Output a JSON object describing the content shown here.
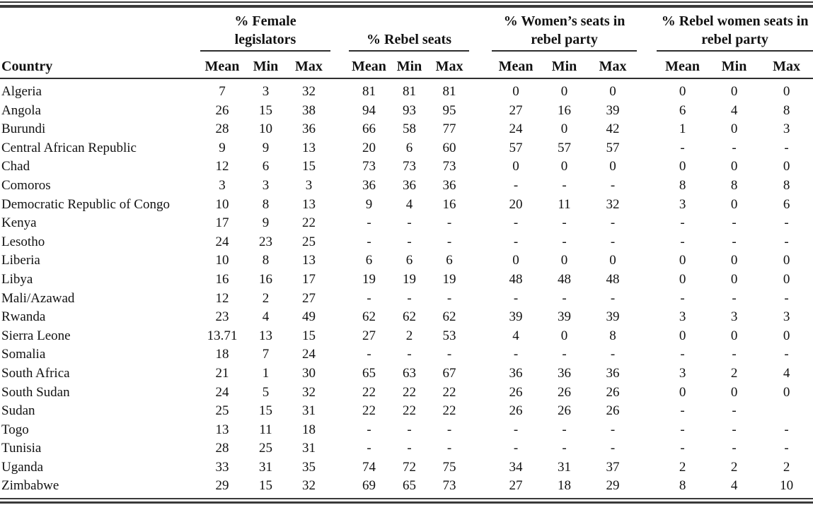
{
  "colors": {
    "background": "#ffffff",
    "text": "#121212",
    "rule_heavy": "#3a3a3a",
    "rule_light": "#2e2e2e"
  },
  "table": {
    "row_header": "Country",
    "groups": [
      {
        "label": "% Female\nlegislators",
        "sub": [
          "Mean",
          "Min",
          "Max"
        ]
      },
      {
        "label": "% Rebel seats",
        "sub": [
          "Mean",
          "Min",
          "Max"
        ]
      },
      {
        "label": "% Women’s seats in\nrebel party",
        "sub": [
          "Mean",
          "Min",
          "Max"
        ]
      },
      {
        "label": "% Rebel women seats in\nrebel party",
        "sub": [
          "Mean",
          "Min",
          "Max"
        ]
      }
    ],
    "rows": [
      {
        "country": "Algeria",
        "pct_female_legislators": [
          "7",
          "3",
          "32"
        ],
        "pct_rebel_seats": [
          "81",
          "81",
          "81"
        ],
        "pct_womens_seats_rebel_party": [
          "0",
          "0",
          "0"
        ],
        "pct_rebel_women_seats_rebel_party": [
          "0",
          "0",
          "0"
        ]
      },
      {
        "country": "Angola",
        "pct_female_legislators": [
          "26",
          "15",
          "38"
        ],
        "pct_rebel_seats": [
          "94",
          "93",
          "95"
        ],
        "pct_womens_seats_rebel_party": [
          "27",
          "16",
          "39"
        ],
        "pct_rebel_women_seats_rebel_party": [
          "6",
          "4",
          "8"
        ]
      },
      {
        "country": "Burundi",
        "pct_female_legislators": [
          "28",
          "10",
          "36"
        ],
        "pct_rebel_seats": [
          "66",
          "58",
          "77"
        ],
        "pct_womens_seats_rebel_party": [
          "24",
          "0",
          "42"
        ],
        "pct_rebel_women_seats_rebel_party": [
          "1",
          "0",
          "3"
        ]
      },
      {
        "country": "Central African Republic",
        "pct_female_legislators": [
          "9",
          "9",
          "13"
        ],
        "pct_rebel_seats": [
          "20",
          "6",
          "60"
        ],
        "pct_womens_seats_rebel_party": [
          "57",
          "57",
          "57"
        ],
        "pct_rebel_women_seats_rebel_party": [
          "-",
          "-",
          "-"
        ]
      },
      {
        "country": "Chad",
        "pct_female_legislators": [
          "12",
          "6",
          "15"
        ],
        "pct_rebel_seats": [
          "73",
          "73",
          "73"
        ],
        "pct_womens_seats_rebel_party": [
          "0",
          "0",
          "0"
        ],
        "pct_rebel_women_seats_rebel_party": [
          "0",
          "0",
          "0"
        ]
      },
      {
        "country": "Comoros",
        "pct_female_legislators": [
          "3",
          "3",
          "3"
        ],
        "pct_rebel_seats": [
          "36",
          "36",
          "36"
        ],
        "pct_womens_seats_rebel_party": [
          "-",
          "-",
          "-"
        ],
        "pct_rebel_women_seats_rebel_party": [
          "8",
          "8",
          "8"
        ]
      },
      {
        "country": "Democratic Republic of Congo",
        "pct_female_legislators": [
          "10",
          "8",
          "13"
        ],
        "pct_rebel_seats": [
          "9",
          "4",
          "16"
        ],
        "pct_womens_seats_rebel_party": [
          "20",
          "11",
          "32"
        ],
        "pct_rebel_women_seats_rebel_party": [
          "3",
          "0",
          "6"
        ]
      },
      {
        "country": "Kenya",
        "pct_female_legislators": [
          "17",
          "9",
          "22"
        ],
        "pct_rebel_seats": [
          "-",
          "-",
          "-"
        ],
        "pct_womens_seats_rebel_party": [
          "-",
          "-",
          "-"
        ],
        "pct_rebel_women_seats_rebel_party": [
          "-",
          "-",
          "-"
        ]
      },
      {
        "country": "Lesotho",
        "pct_female_legislators": [
          "24",
          "23",
          "25"
        ],
        "pct_rebel_seats": [
          "-",
          "-",
          "-"
        ],
        "pct_womens_seats_rebel_party": [
          "-",
          "-",
          "-"
        ],
        "pct_rebel_women_seats_rebel_party": [
          "-",
          "-",
          "-"
        ]
      },
      {
        "country": "Liberia",
        "pct_female_legislators": [
          "10",
          "8",
          "13"
        ],
        "pct_rebel_seats": [
          "6",
          "6",
          "6"
        ],
        "pct_womens_seats_rebel_party": [
          "0",
          "0",
          "0"
        ],
        "pct_rebel_women_seats_rebel_party": [
          "0",
          "0",
          "0"
        ]
      },
      {
        "country": "Libya",
        "pct_female_legislators": [
          "16",
          "16",
          "17"
        ],
        "pct_rebel_seats": [
          "19",
          "19",
          "19"
        ],
        "pct_womens_seats_rebel_party": [
          "48",
          "48",
          "48"
        ],
        "pct_rebel_women_seats_rebel_party": [
          "0",
          "0",
          "0"
        ]
      },
      {
        "country": "Mali/Azawad",
        "pct_female_legislators": [
          "12",
          "2",
          "27"
        ],
        "pct_rebel_seats": [
          "-",
          "-",
          "-"
        ],
        "pct_womens_seats_rebel_party": [
          "-",
          "-",
          "-"
        ],
        "pct_rebel_women_seats_rebel_party": [
          "-",
          "-",
          "-"
        ]
      },
      {
        "country": "Rwanda",
        "pct_female_legislators": [
          "23",
          "4",
          "49"
        ],
        "pct_rebel_seats": [
          "62",
          "62",
          "62"
        ],
        "pct_womens_seats_rebel_party": [
          "39",
          "39",
          "39"
        ],
        "pct_rebel_women_seats_rebel_party": [
          "3",
          "3",
          "3"
        ]
      },
      {
        "country": "Sierra Leone",
        "pct_female_legislators": [
          "13.71",
          "13",
          "15"
        ],
        "pct_rebel_seats": [
          "27",
          "2",
          "53"
        ],
        "pct_womens_seats_rebel_party": [
          "4",
          "0",
          "8"
        ],
        "pct_rebel_women_seats_rebel_party": [
          "0",
          "0",
          "0"
        ]
      },
      {
        "country": "Somalia",
        "pct_female_legislators": [
          "18",
          "7",
          "24"
        ],
        "pct_rebel_seats": [
          "-",
          "-",
          "-"
        ],
        "pct_womens_seats_rebel_party": [
          "-",
          "-",
          "-"
        ],
        "pct_rebel_women_seats_rebel_party": [
          "-",
          "-",
          "-"
        ]
      },
      {
        "country": "South Africa",
        "pct_female_legislators": [
          "21",
          "1",
          "30"
        ],
        "pct_rebel_seats": [
          "65",
          "63",
          "67"
        ],
        "pct_womens_seats_rebel_party": [
          "36",
          "36",
          "36"
        ],
        "pct_rebel_women_seats_rebel_party": [
          "3",
          "2",
          "4"
        ]
      },
      {
        "country": "South Sudan",
        "pct_female_legislators": [
          "24",
          "5",
          "32"
        ],
        "pct_rebel_seats": [
          "22",
          "22",
          "22"
        ],
        "pct_womens_seats_rebel_party": [
          "26",
          "26",
          "26"
        ],
        "pct_rebel_women_seats_rebel_party": [
          "0",
          "0",
          "0"
        ]
      },
      {
        "country": "Sudan",
        "pct_female_legislators": [
          "25",
          "15",
          "31"
        ],
        "pct_rebel_seats": [
          "22",
          "22",
          "22"
        ],
        "pct_womens_seats_rebel_party": [
          "26",
          "26",
          "26"
        ],
        "pct_rebel_women_seats_rebel_party": [
          "-",
          "-",
          ""
        ]
      },
      {
        "country": "Togo",
        "pct_female_legislators": [
          "13",
          "11",
          "18"
        ],
        "pct_rebel_seats": [
          "-",
          "-",
          "-"
        ],
        "pct_womens_seats_rebel_party": [
          "-",
          "-",
          "-"
        ],
        "pct_rebel_women_seats_rebel_party": [
          "-",
          "-",
          "-"
        ]
      },
      {
        "country": "Tunisia",
        "pct_female_legislators": [
          "28",
          "25",
          "31"
        ],
        "pct_rebel_seats": [
          "-",
          "-",
          "-"
        ],
        "pct_womens_seats_rebel_party": [
          "-",
          "-",
          "-"
        ],
        "pct_rebel_women_seats_rebel_party": [
          "-",
          "-",
          "-"
        ]
      },
      {
        "country": "Uganda",
        "pct_female_legislators": [
          "33",
          "31",
          "35"
        ],
        "pct_rebel_seats": [
          "74",
          "72",
          "75"
        ],
        "pct_womens_seats_rebel_party": [
          "34",
          "31",
          "37"
        ],
        "pct_rebel_women_seats_rebel_party": [
          "2",
          "2",
          "2"
        ]
      },
      {
        "country": "Zimbabwe",
        "pct_female_legislators": [
          "29",
          "15",
          "32"
        ],
        "pct_rebel_seats": [
          "69",
          "65",
          "73"
        ],
        "pct_womens_seats_rebel_party": [
          "27",
          "18",
          "29"
        ],
        "pct_rebel_women_seats_rebel_party": [
          "8",
          "4",
          "10"
        ]
      }
    ]
  }
}
